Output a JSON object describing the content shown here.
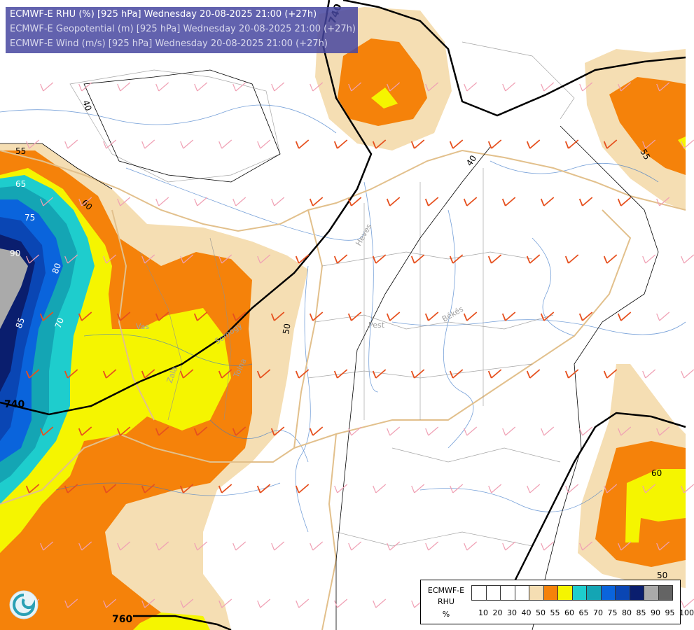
{
  "header": {
    "line1": "ECMWF-E RHU (%) [925 hPa] Wednesday 20-08-2025 21:00 (+27h)",
    "line2": "ECMWF-E Geopotential (m) [925 hPa] Wednesday 20-08-2025 21:00 (+27h)",
    "line3": "ECMWF-E Wind (m/s) [925 hPa] Wednesday 20-08-2025 21:00 (+27h)"
  },
  "legend": {
    "model": "ECMWF-E",
    "var": "RHU",
    "unit": "%",
    "colors": [
      "#ffffff",
      "#ffffff",
      "#ffffff",
      "#ffffff",
      "#f5deb3",
      "#f5820a",
      "#f5f500",
      "#1ecdcd",
      "#14a5b4",
      "#0a64dc",
      "#0a46b4",
      "#0a1e6e",
      "#aaaaaa",
      "#646464"
    ],
    "ticks": [
      "10",
      "20",
      "30",
      "40",
      "50",
      "55",
      "60",
      "65",
      "70",
      "75",
      "80",
      "85",
      "90",
      "95",
      "100"
    ]
  },
  "map_labels": {
    "geo_740_a": "740",
    "geo_740_b": "740",
    "geo_760": "760",
    "rh_40_a": "40",
    "rh_40_b": "40",
    "rh_50": "50",
    "rh_50_b": "50",
    "rh_55": "55",
    "rh_55_b": "55",
    "rh_60": "60",
    "rh_60_b": "60",
    "rh_65": "65",
    "rh_75": "75",
    "rh_80": "80",
    "rh_70": "70",
    "rh_85": "85",
    "rh_90": "90",
    "region_heves": "Heves",
    "region_pest": "Pest",
    "region_bekes": "Békés",
    "region_vas": "Vas",
    "region_zala": "Zala",
    "region_somogy": "Somogy",
    "region_tolna": "Tolna"
  }
}
